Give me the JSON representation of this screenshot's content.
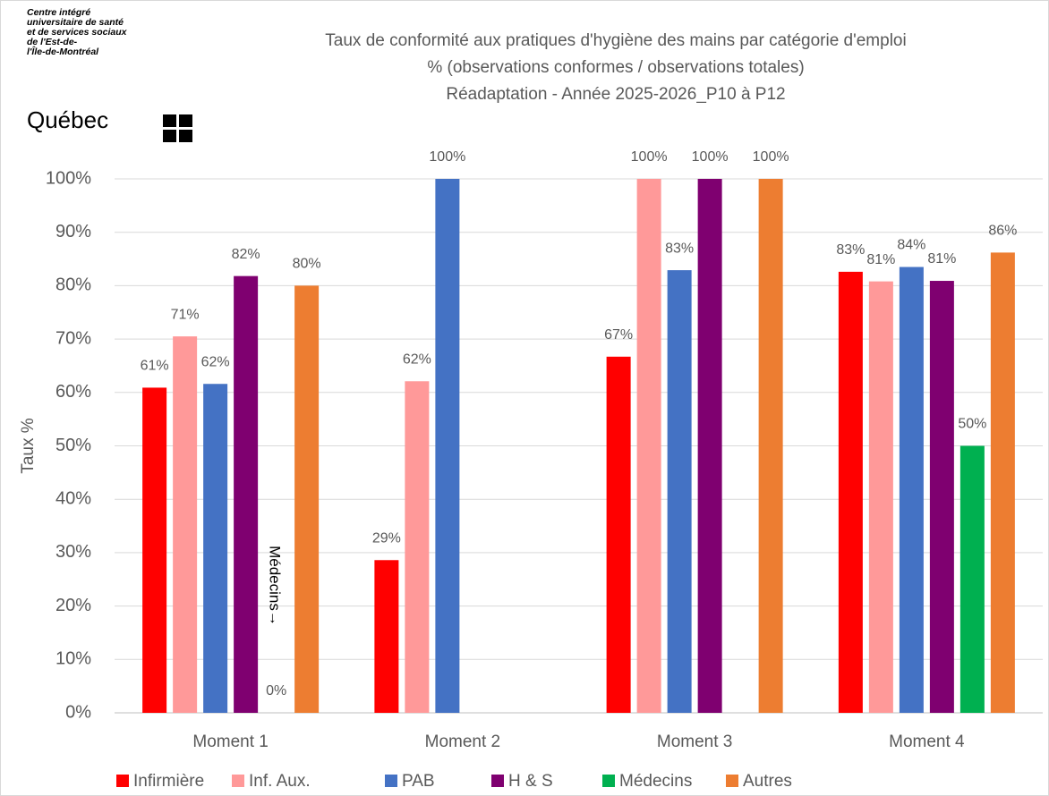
{
  "logo": {
    "lines": [
      "Centre intégré",
      "universitaire de santé",
      "et de services sociaux",
      "de l'Est-de-",
      "l'Île-de-Montréal"
    ],
    "brand": "Québec"
  },
  "chart_data": {
    "type": "bar",
    "title": [
      "Taux de conformité aux pratiques d'hygiène des mains par catégorie d'emploi",
      "% (observations conformes / observations totales)",
      "Réadaptation - Année 2025-2026_P10 à P12"
    ],
    "ylabel": "Taux %",
    "annotation": "Médecins→",
    "categories": [
      "Moment 1",
      "Moment 2",
      "Moment 3",
      "Moment 4"
    ],
    "series": [
      {
        "name": "Infirmière",
        "color": "#ff0000",
        "values": [
          60.9,
          28.6,
          66.7,
          82.6
        ],
        "value_labels": [
          "61%",
          "29%",
          "67%",
          "83%"
        ]
      },
      {
        "name": "Inf. Aux.",
        "color": "#ff9999",
        "values": [
          70.5,
          62.1,
          100,
          80.8
        ],
        "value_labels": [
          "71%",
          "62%",
          "100%",
          "81%"
        ]
      },
      {
        "name": "PAB",
        "color": "#4472c4",
        "values": [
          61.6,
          100,
          82.9,
          83.5
        ],
        "value_labels": [
          "62%",
          "100%",
          "83%",
          "84%"
        ]
      },
      {
        "name": "H & S",
        "color": "#7f0070",
        "values": [
          81.8,
          null,
          100,
          80.9
        ],
        "value_labels": [
          "82%",
          null,
          "100%",
          "81%"
        ]
      },
      {
        "name": "Médecins",
        "color": "#00b050",
        "values": [
          0,
          null,
          null,
          50
        ],
        "value_labels": [
          "0%",
          null,
          null,
          "50%"
        ]
      },
      {
        "name": "Autres",
        "color": "#ed7d31",
        "values": [
          80,
          null,
          100,
          86.2
        ],
        "value_labels": [
          "80%",
          null,
          "100%",
          "86%"
        ]
      }
    ],
    "ylim": [
      0,
      100
    ],
    "yticks": [
      {
        "value": 0,
        "label": "0%"
      },
      {
        "value": 10,
        "label": "10%"
      },
      {
        "value": 20,
        "label": "20%"
      },
      {
        "value": 30,
        "label": "30%"
      },
      {
        "value": 40,
        "label": "40%"
      },
      {
        "value": 50,
        "label": "50%"
      },
      {
        "value": 60,
        "label": "60%"
      },
      {
        "value": 70,
        "label": "70%"
      },
      {
        "value": 80,
        "label": "80%"
      },
      {
        "value": 90,
        "label": "90%"
      },
      {
        "value": 100,
        "label": "100%"
      }
    ],
    "grid": true,
    "legend": "bottom"
  }
}
